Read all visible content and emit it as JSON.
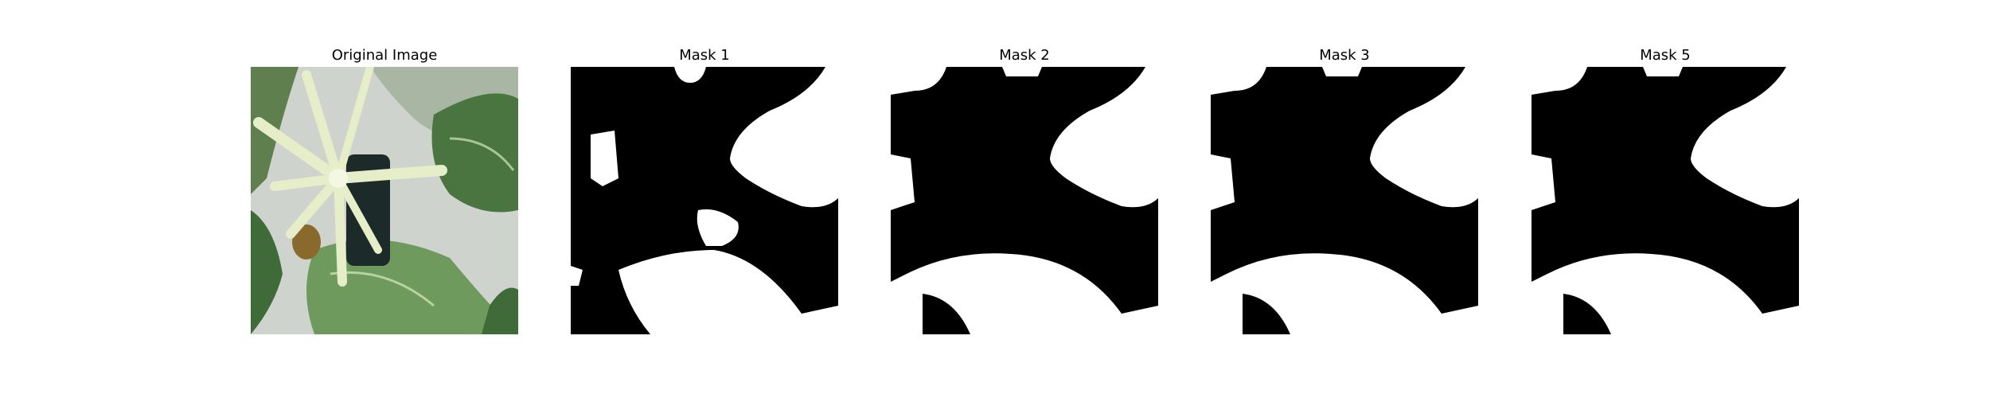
{
  "figure": {
    "panels": [
      {
        "title": "Original Image",
        "kind": "photo"
      },
      {
        "title": "Mask 1",
        "kind": "mask",
        "variant": 1
      },
      {
        "title": "Mask 2",
        "kind": "mask",
        "variant": 2
      },
      {
        "title": "Mask 3",
        "kind": "mask",
        "variant": 3
      },
      {
        "title": "Mask 5",
        "kind": "mask",
        "variant": 5
      }
    ]
  },
  "colors": {
    "mask_black": "#000000",
    "mask_white": "#ffffff",
    "leaf_dark": "#3f6b38",
    "leaf_light": "#8fb07a",
    "flower_cream": "#e6edc9",
    "background_gray": "#cfd3cd",
    "pot_dark": "#1d2a2a",
    "bud_brown": "#8a6a2c"
  }
}
